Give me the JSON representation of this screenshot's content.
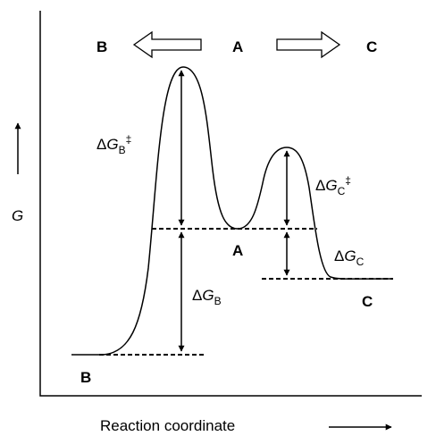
{
  "direction_labels": {
    "left": "B",
    "center": "A",
    "right": "C"
  },
  "state_labels": {
    "a": "A",
    "b": "B",
    "c": "C"
  },
  "axis": {
    "y_label": "G",
    "x_label": "Reaction coordinate"
  },
  "energy_labels": {
    "delta": "Δ",
    "g": "G",
    "dg_b_dagger_sub": "B",
    "dg_c_dagger_sub": "C",
    "dg_c_sub": "C",
    "dg_b_sub": "B",
    "dagger": "‡"
  }
}
